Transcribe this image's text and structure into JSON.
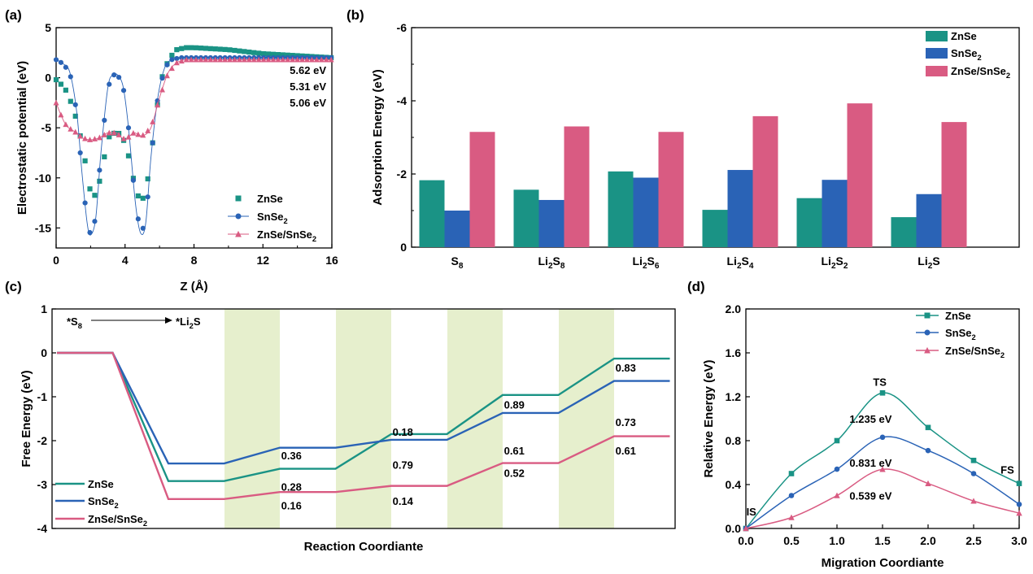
{
  "colors": {
    "ZnSe": "#1a9385",
    "SnSe2": "#2a63b6",
    "ZnSeSnSe2": "#d95b82",
    "band": "#e6efcd"
  },
  "chart_data": [
    {
      "id": "a",
      "panel_label": "(a)",
      "type": "scatter",
      "xlabel": "Z (Å)",
      "ylabel": "Electrostatic potential (eV)",
      "xlim": [
        0,
        16
      ],
      "ylim": [
        -17,
        5
      ],
      "xticks": [
        "0",
        "4",
        "8",
        "12",
        "16"
      ],
      "yticks": [
        "5",
        "0",
        "-5",
        "-10",
        "-15"
      ],
      "legend": [
        {
          "label": "ZnSe",
          "markup": "ZnSe"
        },
        {
          "label": "SnSe2",
          "markup": "SnSe_2"
        },
        {
          "label": "ZnSe/SnSe2",
          "markup": "ZnSe/SnSe_2"
        }
      ],
      "annotations": [
        {
          "text": "5.62 eV",
          "series": "ZnSe"
        },
        {
          "text": "5.31 eV",
          "series": "SnSe2"
        },
        {
          "text": "5.06 eV",
          "series": "ZnSe/SnSe2"
        }
      ],
      "series": [
        {
          "name": "ZnSe",
          "marker": "square",
          "x": [
            0,
            0.5,
            1,
            1.5,
            1.8,
            2.0,
            2.3,
            2.6,
            3.0,
            3.4,
            3.8,
            4.2,
            4.6,
            4.9,
            5.2,
            5.5,
            5.8,
            6.2,
            6.6,
            7.0,
            7.5,
            8.0,
            9,
            10,
            11,
            12,
            13,
            14,
            15,
            16
          ],
          "y": [
            -0.2,
            -1.0,
            -3.0,
            -6.5,
            -9.5,
            -11.5,
            -11.8,
            -9.8,
            -6.0,
            -5.5,
            -5.6,
            -7.8,
            -11.0,
            -12.5,
            -11.5,
            -8.0,
            -3.5,
            0.5,
            2.0,
            2.8,
            3.0,
            3.0,
            2.9,
            2.8,
            2.6,
            2.4,
            2.3,
            2.2,
            2.1,
            2.0
          ]
        },
        {
          "name": "SnSe2",
          "marker": "circle",
          "x": [
            0,
            0.4,
            0.8,
            1.2,
            1.5,
            1.8,
            2.0,
            2.3,
            2.6,
            3.0,
            3.3,
            3.6,
            3.9,
            4.2,
            4.6,
            4.9,
            5.2,
            5.5,
            5.9,
            6.3,
            6.7,
            7.2,
            8,
            9,
            10,
            11,
            12,
            13,
            14,
            15,
            16
          ],
          "y": [
            1.8,
            1.4,
            0.5,
            -3.5,
            -9.5,
            -14.5,
            -15.7,
            -14.0,
            -7.5,
            -1.0,
            0.3,
            0.2,
            -1.0,
            -5.0,
            -12.5,
            -15.5,
            -14.5,
            -8.0,
            -2.0,
            1.0,
            1.8,
            2.0,
            2.0,
            2.0,
            2.0,
            2.0,
            2.0,
            2.0,
            2.0,
            2.0,
            2.0
          ]
        },
        {
          "name": "ZnSe/SnSe2",
          "marker": "triangle",
          "x": [
            0,
            0.3,
            0.6,
            0.9,
            1.2,
            1.5,
            2.0,
            2.5,
            3.0,
            3.5,
            4.0,
            4.5,
            5.0,
            5.5,
            6.0,
            6.5,
            7.0,
            7.5,
            8,
            9,
            10,
            11,
            12,
            13,
            14,
            15,
            16
          ],
          "y": [
            -2.5,
            -3.8,
            -4.8,
            -5.2,
            -5.5,
            -6.0,
            -6.2,
            -6.0,
            -5.5,
            -5.5,
            -6.2,
            -5.5,
            -5.8,
            -5.0,
            -2.0,
            0.5,
            1.5,
            1.8,
            1.8,
            1.8,
            1.8,
            1.8,
            1.8,
            1.8,
            1.8,
            1.8,
            1.8
          ]
        }
      ]
    },
    {
      "id": "b",
      "panel_label": "(b)",
      "type": "bar",
      "ylabel": "Adsorption Energy (eV)",
      "ylim": [
        0,
        -6
      ],
      "yticks": [
        "-6",
        "-4",
        "-2",
        "0"
      ],
      "categories": [
        {
          "label": "S8",
          "markup": "S_8"
        },
        {
          "label": "Li2S8",
          "markup": "Li_2S_8"
        },
        {
          "label": "Li2S6",
          "markup": "Li_2S_6"
        },
        {
          "label": "Li2S4",
          "markup": "Li_2S_4"
        },
        {
          "label": "Li2S2",
          "markup": "Li_2S_2"
        },
        {
          "label": "Li2S",
          "markup": "Li_2S"
        }
      ],
      "legend": [
        {
          "label": "ZnSe",
          "markup": "ZnSe"
        },
        {
          "label": "SnSe2",
          "markup": "SnSe_2"
        },
        {
          "label": "ZnSe/SnSe2",
          "markup": "ZnSe/SnSe_2"
        }
      ],
      "series": [
        {
          "name": "ZnSe",
          "values": [
            -1.83,
            -1.57,
            -2.07,
            -1.02,
            -1.34,
            -0.82
          ]
        },
        {
          "name": "SnSe2",
          "values": [
            -1.0,
            -1.29,
            -1.9,
            -2.11,
            -1.84,
            -1.45
          ]
        },
        {
          "name": "ZnSe/SnSe2",
          "values": [
            -3.15,
            -3.3,
            -3.15,
            -3.58,
            -3.93,
            -3.42
          ]
        }
      ]
    },
    {
      "id": "c",
      "panel_label": "(c)",
      "type": "line",
      "xlabel": "Reaction Coordiante",
      "ylabel": "Free Energy (eV)",
      "ylim": [
        -4,
        1
      ],
      "yticks": [
        "1",
        "0",
        "-1",
        "-2",
        "-3",
        "-4"
      ],
      "reaction_label": {
        "from_markup": "*S_8",
        "to_markup": "*Li_2S"
      },
      "steps": 6,
      "legend": [
        {
          "label": "ZnSe",
          "markup": "ZnSe"
        },
        {
          "label": "SnSe2",
          "markup": "SnSe_2"
        },
        {
          "label": "ZnSe/SnSe2",
          "markup": "ZnSe/SnSe_2"
        }
      ],
      "series": [
        {
          "name": "ZnSe",
          "levels": [
            0,
            -2.92,
            -2.64,
            -1.85,
            -0.96,
            -0.13
          ]
        },
        {
          "name": "SnSe2",
          "levels": [
            0,
            -2.52,
            -2.16,
            -1.98,
            -1.37,
            -0.64
          ]
        },
        {
          "name": "ZnSe/SnSe2",
          "levels": [
            0,
            -3.33,
            -3.17,
            -3.03,
            -2.51,
            -1.9
          ]
        }
      ],
      "step_labels": [
        {
          "text": "0.36",
          "step": 2,
          "y": -2.33
        },
        {
          "text": "0.28",
          "step": 2,
          "y": -3.05
        },
        {
          "text": "0.16",
          "step": 2,
          "y": -3.47
        },
        {
          "text": "0.18",
          "step": 3,
          "y": -1.8
        },
        {
          "text": "0.79",
          "step": 3,
          "y": -2.55
        },
        {
          "text": "0.14",
          "step": 3,
          "y": -3.37
        },
        {
          "text": "0.89",
          "step": 4,
          "y": -1.18
        },
        {
          "text": "0.61",
          "step": 4,
          "y": -2.22
        },
        {
          "text": "0.52",
          "step": 4,
          "y": -2.73
        },
        {
          "text": "0.83",
          "step": 5,
          "y": -0.33
        },
        {
          "text": "0.73",
          "step": 5,
          "y": -1.57
        },
        {
          "text": "0.61",
          "step": 5,
          "y": -2.22
        }
      ]
    },
    {
      "id": "d",
      "panel_label": "(d)",
      "type": "line",
      "xlabel": "Migration Coordiante",
      "ylabel": "Relative Energy (eV)",
      "xlim": [
        0,
        3
      ],
      "ylim": [
        0,
        2
      ],
      "xticks": [
        "0.0",
        "0.5",
        "1.0",
        "1.5",
        "2.0",
        "2.5",
        "3.0"
      ],
      "yticks": [
        "0.0",
        "0.4",
        "0.8",
        "1.2",
        "1.6",
        "2.0"
      ],
      "legend": [
        {
          "label": "ZnSe",
          "markup": "ZnSe"
        },
        {
          "label": "SnSe2",
          "markup": "SnSe_2"
        },
        {
          "label": "ZnSe/SnSe2",
          "markup": "ZnSe/SnSe_2"
        }
      ],
      "point_labels": [
        {
          "text": "IS",
          "x": 0.06,
          "y": 0.12
        },
        {
          "text": "TS",
          "x": 1.47,
          "y": 1.3
        },
        {
          "text": "FS",
          "x": 2.87,
          "y": 0.5
        }
      ],
      "annotations": [
        {
          "text": "1.235 eV",
          "series": "ZnSe",
          "x": 1.37,
          "y": 1.0
        },
        {
          "text": "0.831 eV",
          "series": "SnSe2",
          "x": 1.37,
          "y": 0.6
        },
        {
          "text": "0.539 eV",
          "series": "ZnSe/SnSe2",
          "x": 1.37,
          "y": 0.3
        }
      ],
      "series": [
        {
          "name": "ZnSe",
          "marker": "square",
          "x": [
            0,
            0.5,
            1.0,
            1.5,
            2.0,
            2.5,
            3.0
          ],
          "y": [
            0,
            0.5,
            0.8,
            1.235,
            0.92,
            0.62,
            0.41
          ]
        },
        {
          "name": "SnSe2",
          "marker": "circle",
          "x": [
            0,
            0.5,
            1.0,
            1.5,
            2.0,
            2.5,
            3.0
          ],
          "y": [
            0,
            0.3,
            0.54,
            0.831,
            0.71,
            0.5,
            0.22
          ]
        },
        {
          "name": "ZnSe/SnSe2",
          "marker": "triangle",
          "x": [
            0,
            0.5,
            1.0,
            1.5,
            2.0,
            2.5,
            3.0
          ],
          "y": [
            0,
            0.1,
            0.3,
            0.539,
            0.41,
            0.25,
            0.14
          ]
        }
      ]
    }
  ]
}
